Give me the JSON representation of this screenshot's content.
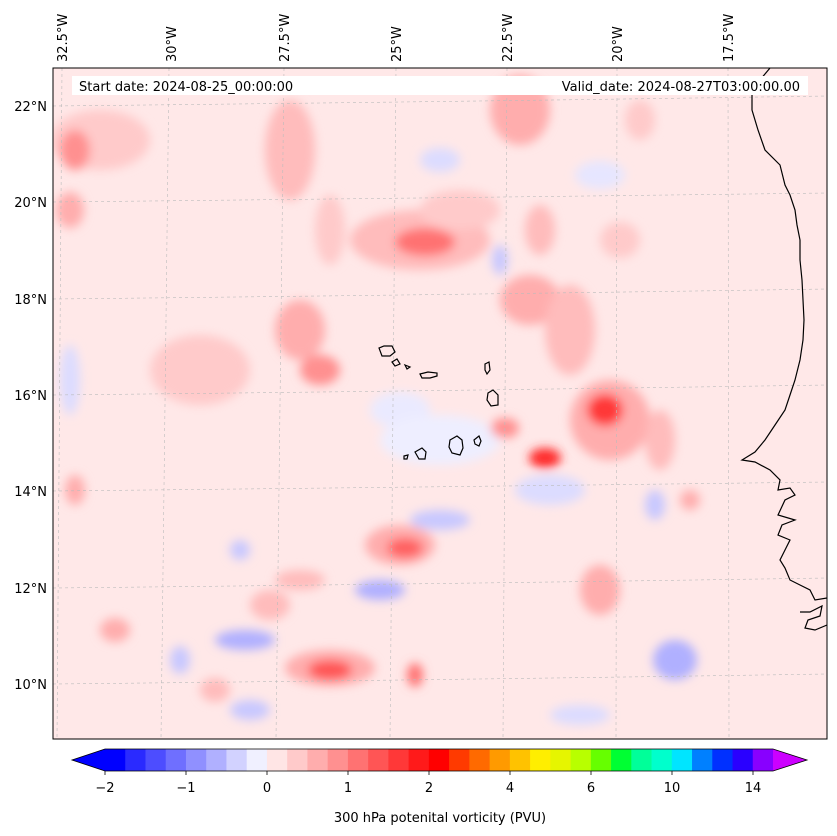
{
  "header": {
    "start_date": "Start date: 2024-08-25_00:00:00",
    "valid_date": "Valid_date: 2024-08-27T03:00:00.00"
  },
  "longitude_labels": [
    "32.5°W",
    "30°W",
    "27.5°W",
    "25°W",
    "22.5°W",
    "20°W",
    "17.5°W"
  ],
  "latitude_labels": [
    "22°N",
    "20°N",
    "18°N",
    "16°N",
    "14°N",
    "12°N",
    "10°N"
  ],
  "colorbar": {
    "title": "300 hPa potenital vorticity (PVU)",
    "tick_labels": [
      "−2",
      "−1",
      "0",
      "1",
      "2",
      "4",
      "6",
      "10",
      "14"
    ],
    "colors": [
      "#0000ff",
      "#2a2aff",
      "#4d4dff",
      "#6f6fff",
      "#9090ff",
      "#b0b0ff",
      "#d2d2ff",
      "#f0f0ff",
      "#ffe5e5",
      "#ffcaca",
      "#ffadad",
      "#ff9090",
      "#ff7272",
      "#ff5555",
      "#ff3838",
      "#ff1a1a",
      "#ff0000",
      "#ff3a00",
      "#ff6a00",
      "#ff9a00",
      "#ffc200",
      "#ffee00",
      "#e6f500",
      "#b8ff00",
      "#66ff00",
      "#00ff33",
      "#00ff99",
      "#00ffcc",
      "#00e5ff",
      "#0080ff",
      "#0030ff",
      "#2a00ff",
      "#8800ff"
    ],
    "extend_low_color": "#0000ff",
    "extend_high_color": "#cc00ff"
  },
  "colors": {
    "background_field": "#ffe8e8",
    "coastline": "#000000",
    "grid": "#bbbbbb"
  }
}
